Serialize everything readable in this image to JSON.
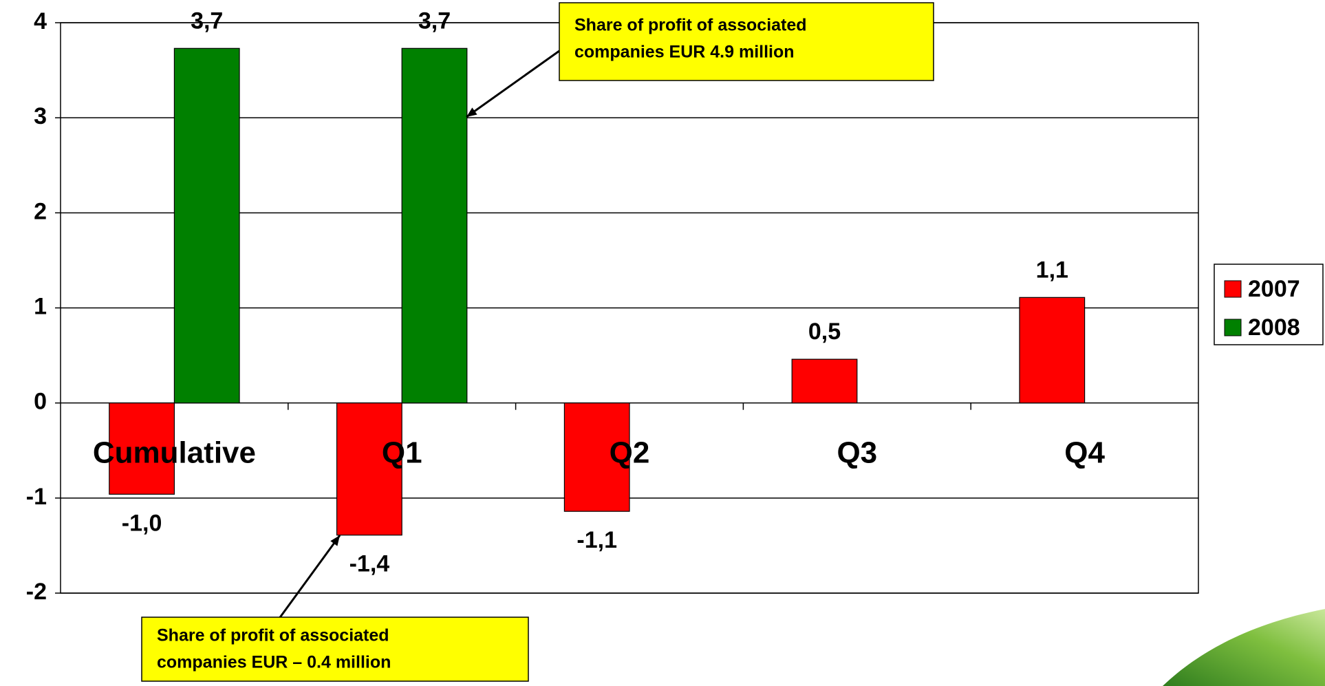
{
  "chart_data": {
    "type": "bar",
    "categories": [
      "Cumulative",
      "Q1",
      "Q2",
      "Q3",
      "Q4"
    ],
    "series": [
      {
        "name": "2007",
        "color": "#ff0000",
        "values": [
          -0.96,
          -1.39,
          -1.14,
          0.46,
          1.11
        ],
        "value_labels": [
          "-1,0",
          "-1,4",
          "-1,1",
          "0,5",
          "1,1"
        ]
      },
      {
        "name": "2008",
        "color": "#008000",
        "values": [
          3.73,
          3.73,
          null,
          null,
          null
        ],
        "value_labels": [
          "3,7",
          "3,7",
          null,
          null,
          null
        ]
      }
    ],
    "ylim": [
      -2,
      4
    ],
    "yticks": [
      -2,
      -1,
      0,
      1,
      2,
      3,
      4
    ],
    "grid": true,
    "legend": "right",
    "annotations": [
      {
        "lines": [
          "Share of profit of associated",
          "companies EUR 4.9 million"
        ]
      },
      {
        "lines": [
          "Share of profit of associated",
          "companies EUR – 0.4 million"
        ]
      }
    ]
  }
}
